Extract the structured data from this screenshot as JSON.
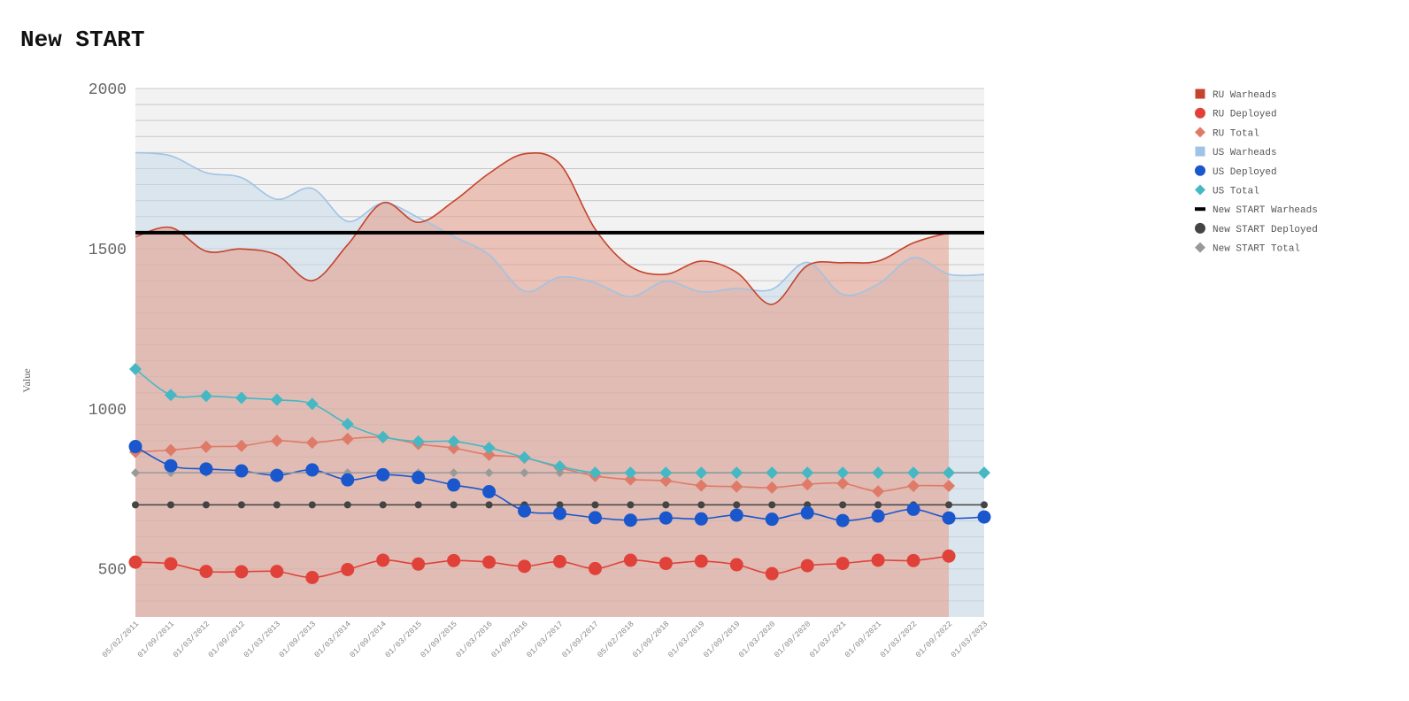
{
  "chart_data": {
    "type": "line",
    "title": "New START",
    "ylabel": "Value",
    "xlabel": "",
    "ylim": [
      350,
      2000
    ],
    "yticks": [
      500,
      1000,
      1500,
      2000
    ],
    "grid": "horizontal",
    "legend_position": "top-right",
    "categories": [
      "05/02/2011",
      "01/09/2011",
      "01/03/2012",
      "01/09/2012",
      "01/03/2013",
      "01/09/2013",
      "01/03/2014",
      "01/09/2014",
      "01/03/2015",
      "01/09/2015",
      "01/03/2016",
      "01/09/2016",
      "01/03/2017",
      "01/09/2017",
      "05/02/2018",
      "01/09/2018",
      "01/03/2019",
      "01/09/2019",
      "01/03/2020",
      "01/09/2020",
      "01/03/2021",
      "01/09/2021",
      "01/03/2022",
      "01/09/2022",
      "01/03/2023"
    ],
    "series": [
      {
        "name": "RU Warheads",
        "style": "area",
        "color": "#c5422c",
        "fill": "#e39a86",
        "values": [
          1537,
          1566,
          1492,
          1499,
          1480,
          1400,
          1512,
          1643,
          1582,
          1648,
          1735,
          1796,
          1765,
          1561,
          1444,
          1420,
          1461,
          1426,
          1326,
          1447,
          1456,
          1461,
          1518,
          1550,
          null
        ]
      },
      {
        "name": "RU Deployed",
        "style": "marker",
        "marker": "circle",
        "color": "#e0423a",
        "values": [
          521,
          516,
          492,
          491,
          492,
          473,
          498,
          527,
          515,
          526,
          521,
          508,
          523,
          501,
          527,
          517,
          524,
          513,
          485,
          510,
          517,
          527,
          526,
          540,
          null
        ]
      },
      {
        "name": "RU Total",
        "style": "marker",
        "marker": "diamond",
        "color": "#e07a68",
        "values": [
          865,
          871,
          881,
          884,
          900,
          894,
          906,
          911,
          890,
          877,
          856,
          847,
          816,
          790,
          779,
          775,
          760,
          757,
          754,
          764,
          767,
          742,
          759,
          759,
          null
        ]
      },
      {
        "name": "US Warheads",
        "style": "area",
        "color": "#9fc3e5",
        "fill": "#c9daea",
        "values": [
          1800,
          1790,
          1737,
          1722,
          1654,
          1688,
          1585,
          1642,
          1597,
          1538,
          1481,
          1367,
          1411,
          1393,
          1350,
          1398,
          1365,
          1376,
          1373,
          1457,
          1357,
          1389,
          1472,
          1420,
          1419
        ]
      },
      {
        "name": "US Deployed",
        "style": "marker",
        "marker": "circle",
        "color": "#1a56cc",
        "values": [
          882,
          822,
          812,
          806,
          792,
          809,
          778,
          794,
          785,
          762,
          741,
          681,
          673,
          660,
          652,
          659,
          656,
          668,
          655,
          675,
          651,
          665,
          686,
          659,
          662
        ]
      },
      {
        "name": "US Total",
        "style": "marker",
        "marker": "diamond",
        "color": "#45b8c4",
        "values": [
          1124,
          1043,
          1040,
          1034,
          1028,
          1015,
          952,
          912,
          898,
          898,
          878,
          848,
          820,
          800,
          800,
          800,
          800,
          800,
          800,
          800,
          800,
          800,
          800,
          800,
          800
        ]
      },
      {
        "name": "New START Warheads",
        "style": "hline",
        "color": "#000000",
        "value": 1550
      },
      {
        "name": "New START Deployed",
        "style": "marker",
        "marker": "circle",
        "color": "#444444",
        "values": [
          700,
          700,
          700,
          700,
          700,
          700,
          700,
          700,
          700,
          700,
          700,
          700,
          700,
          700,
          700,
          700,
          700,
          700,
          700,
          700,
          700,
          700,
          700,
          700,
          700
        ]
      },
      {
        "name": "New START Total",
        "style": "marker",
        "marker": "diamond",
        "color": "#999999",
        "values": [
          800,
          800,
          800,
          800,
          800,
          800,
          800,
          800,
          800,
          800,
          800,
          800,
          800,
          800,
          800,
          800,
          800,
          800,
          800,
          800,
          800,
          800,
          800,
          800,
          800
        ]
      }
    ]
  }
}
